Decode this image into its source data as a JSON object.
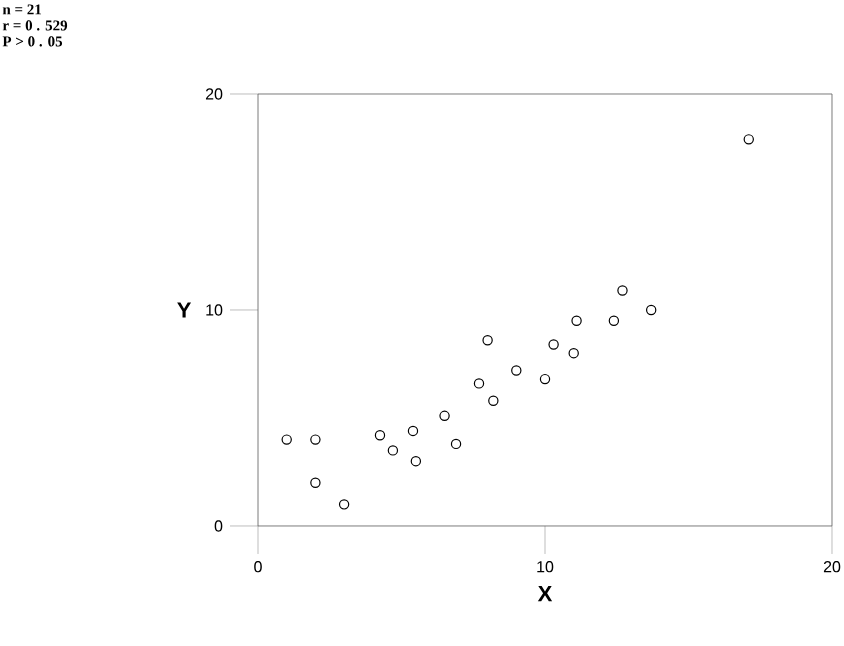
{
  "chart_data": {
    "type": "scatter",
    "xlabel": "X",
    "ylabel": "Y",
    "annotations": [
      "n =       21",
      "r = 0 . 529",
      "P > 0 . 05"
    ],
    "x": [
      1.0,
      2.0,
      2.0,
      3.0,
      4.25,
      4.7,
      5.4,
      5.5,
      6.5,
      6.9,
      7.7,
      8.0,
      8.2,
      9.0,
      10.0,
      10.3,
      11.0,
      11.1,
      12.4,
      12.7,
      13.7,
      17.1
    ],
    "values": [
      4.0,
      4.0,
      2.0,
      1.0,
      4.2,
      3.5,
      4.4,
      3.0,
      5.1,
      3.8,
      6.6,
      8.6,
      5.8,
      7.2,
      6.8,
      8.4,
      8.0,
      9.5,
      9.5,
      10.9,
      10.0,
      17.9
    ],
    "color": "#000000",
    "marker": "circle",
    "xlim": [
      0,
      20
    ],
    "ylim": [
      0,
      20
    ],
    "xticks": [
      0,
      10,
      20
    ],
    "yticks": [
      0,
      10,
      20
    ],
    "grid": false
  }
}
